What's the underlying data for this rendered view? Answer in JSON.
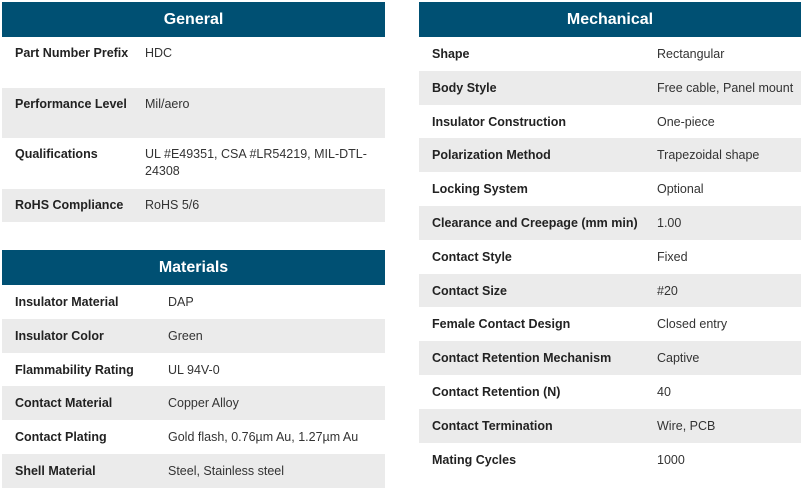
{
  "general": {
    "title": "General",
    "rows": [
      {
        "label": "Part Number Prefix",
        "value": "HDC"
      },
      {
        "label": "Performance Level",
        "value": "Mil/aero"
      },
      {
        "label": "Qualifications",
        "value": "UL #E49351, CSA #LR54219, MIL-DTL-24308"
      },
      {
        "label": "RoHS Compliance",
        "value": "RoHS 5/6"
      }
    ]
  },
  "materials": {
    "title": "Materials",
    "rows": [
      {
        "label": "Insulator Material",
        "value": "DAP"
      },
      {
        "label": "Insulator Color",
        "value": "Green"
      },
      {
        "label": "Flammability Rating",
        "value": "UL 94V-0"
      },
      {
        "label": "Contact Material",
        "value": "Copper Alloy"
      },
      {
        "label": "Contact Plating",
        "value": "Gold flash, 0.76µm Au, 1.27µm Au"
      },
      {
        "label": "Shell Material",
        "value": "Steel, Stainless steel"
      }
    ]
  },
  "mechanical": {
    "title": "Mechanical",
    "rows": [
      {
        "label": "Shape",
        "value": "Rectangular"
      },
      {
        "label": "Body Style",
        "value": "Free cable, Panel mount"
      },
      {
        "label": "Insulator Construction",
        "value": "One-piece"
      },
      {
        "label": "Polarization Method",
        "value": "Trapezoidal shape"
      },
      {
        "label": "Locking System",
        "value": "Optional"
      },
      {
        "label": "Clearance and Creepage (mm min)",
        "value": "1.00"
      },
      {
        "label": "Contact Style",
        "value": "Fixed"
      },
      {
        "label": "Contact Size",
        "value": "#20"
      },
      {
        "label": "Female Contact Design",
        "value": "Closed entry"
      },
      {
        "label": "Contact Retention Mechanism",
        "value": "Captive"
      },
      {
        "label": "Contact Retention (N)",
        "value": "40"
      },
      {
        "label": "Contact Termination",
        "value": "Wire, PCB"
      },
      {
        "label": "Mating Cycles",
        "value": "1000"
      }
    ]
  },
  "colors": {
    "header_bg": "#005073",
    "alt_row_bg": "#ebebeb"
  }
}
